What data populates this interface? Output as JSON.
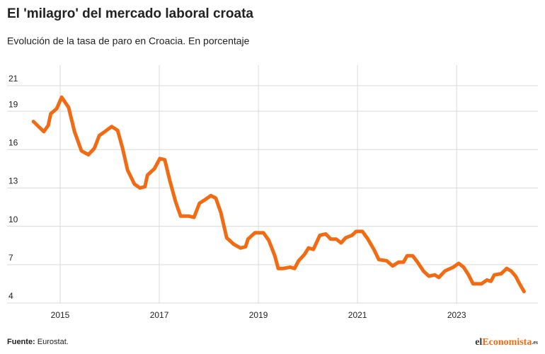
{
  "chart_data": {
    "type": "line",
    "title": "El 'milagro' del mercado laboral croata",
    "subtitle": "Evolución de la tasa de paro en Croacia. En porcentaje",
    "source_label": "Fuente:",
    "source": "Eurostat.",
    "logo": [
      "el",
      "Economista",
      ".es"
    ],
    "x": [
      2014.46,
      2014.67,
      2014.76,
      2014.81,
      2014.93,
      2015.03,
      2015.17,
      2015.29,
      2015.43,
      2015.57,
      2015.69,
      2015.79,
      2015.9,
      2016.04,
      2016.16,
      2016.26,
      2016.36,
      2016.5,
      2016.61,
      2016.71,
      2016.76,
      2016.9,
      2017.01,
      2017.11,
      2017.21,
      2017.33,
      2017.43,
      2017.59,
      2017.7,
      2017.81,
      2017.93,
      2018.04,
      2018.14,
      2018.24,
      2018.36,
      2018.5,
      2018.64,
      2018.74,
      2018.79,
      2018.93,
      2019.1,
      2019.21,
      2019.33,
      2019.4,
      2019.5,
      2019.64,
      2019.73,
      2019.81,
      2019.93,
      2020.01,
      2020.11,
      2020.24,
      2020.36,
      2020.46,
      2020.57,
      2020.67,
      2020.76,
      2020.89,
      2020.97,
      2021.1,
      2021.21,
      2021.33,
      2021.43,
      2021.59,
      2021.71,
      2021.83,
      2021.93,
      2022.0,
      2022.11,
      2022.21,
      2022.33,
      2022.44,
      2022.56,
      2022.64,
      2022.76,
      2022.93,
      2023.04,
      2023.14,
      2023.24,
      2023.33,
      2023.5,
      2023.61,
      2023.69,
      2023.76,
      2023.9,
      2024.01,
      2024.1,
      2024.19,
      2024.27,
      2024.36
    ],
    "series": [
      {
        "name": "Tasa de paro",
        "color": "#f26b12",
        "values": [
          18.2,
          17.4,
          17.9,
          18.8,
          19.2,
          20.1,
          19.3,
          17.4,
          15.9,
          15.6,
          16.1,
          17.1,
          17.4,
          17.8,
          17.5,
          16.1,
          14.4,
          13.3,
          13.0,
          13.1,
          14.0,
          14.5,
          15.3,
          15.2,
          13.6,
          11.9,
          10.8,
          10.8,
          10.7,
          11.8,
          12.1,
          12.4,
          12.2,
          11.1,
          9.1,
          8.6,
          8.3,
          8.4,
          9.0,
          9.5,
          9.5,
          8.9,
          7.7,
          6.7,
          6.7,
          6.8,
          6.7,
          7.3,
          7.8,
          8.3,
          8.2,
          9.3,
          9.4,
          9.0,
          9.0,
          8.7,
          9.1,
          9.3,
          9.6,
          9.6,
          9.0,
          8.2,
          7.4,
          7.3,
          6.9,
          7.2,
          7.2,
          7.7,
          7.7,
          7.2,
          6.5,
          6.1,
          6.2,
          6.0,
          6.5,
          6.8,
          7.1,
          6.8,
          6.2,
          5.5,
          5.5,
          5.8,
          5.7,
          6.2,
          6.3,
          6.7,
          6.5,
          6.1,
          5.5,
          4.9
        ]
      }
    ],
    "xlim": [
      2014,
      2024.64
    ],
    "xticks": [
      2015,
      2017,
      2019,
      2021,
      2023
    ],
    "ylim": [
      4,
      21
    ],
    "yticks": [
      4,
      7,
      10,
      13,
      16,
      19,
      21
    ],
    "grid": true
  }
}
